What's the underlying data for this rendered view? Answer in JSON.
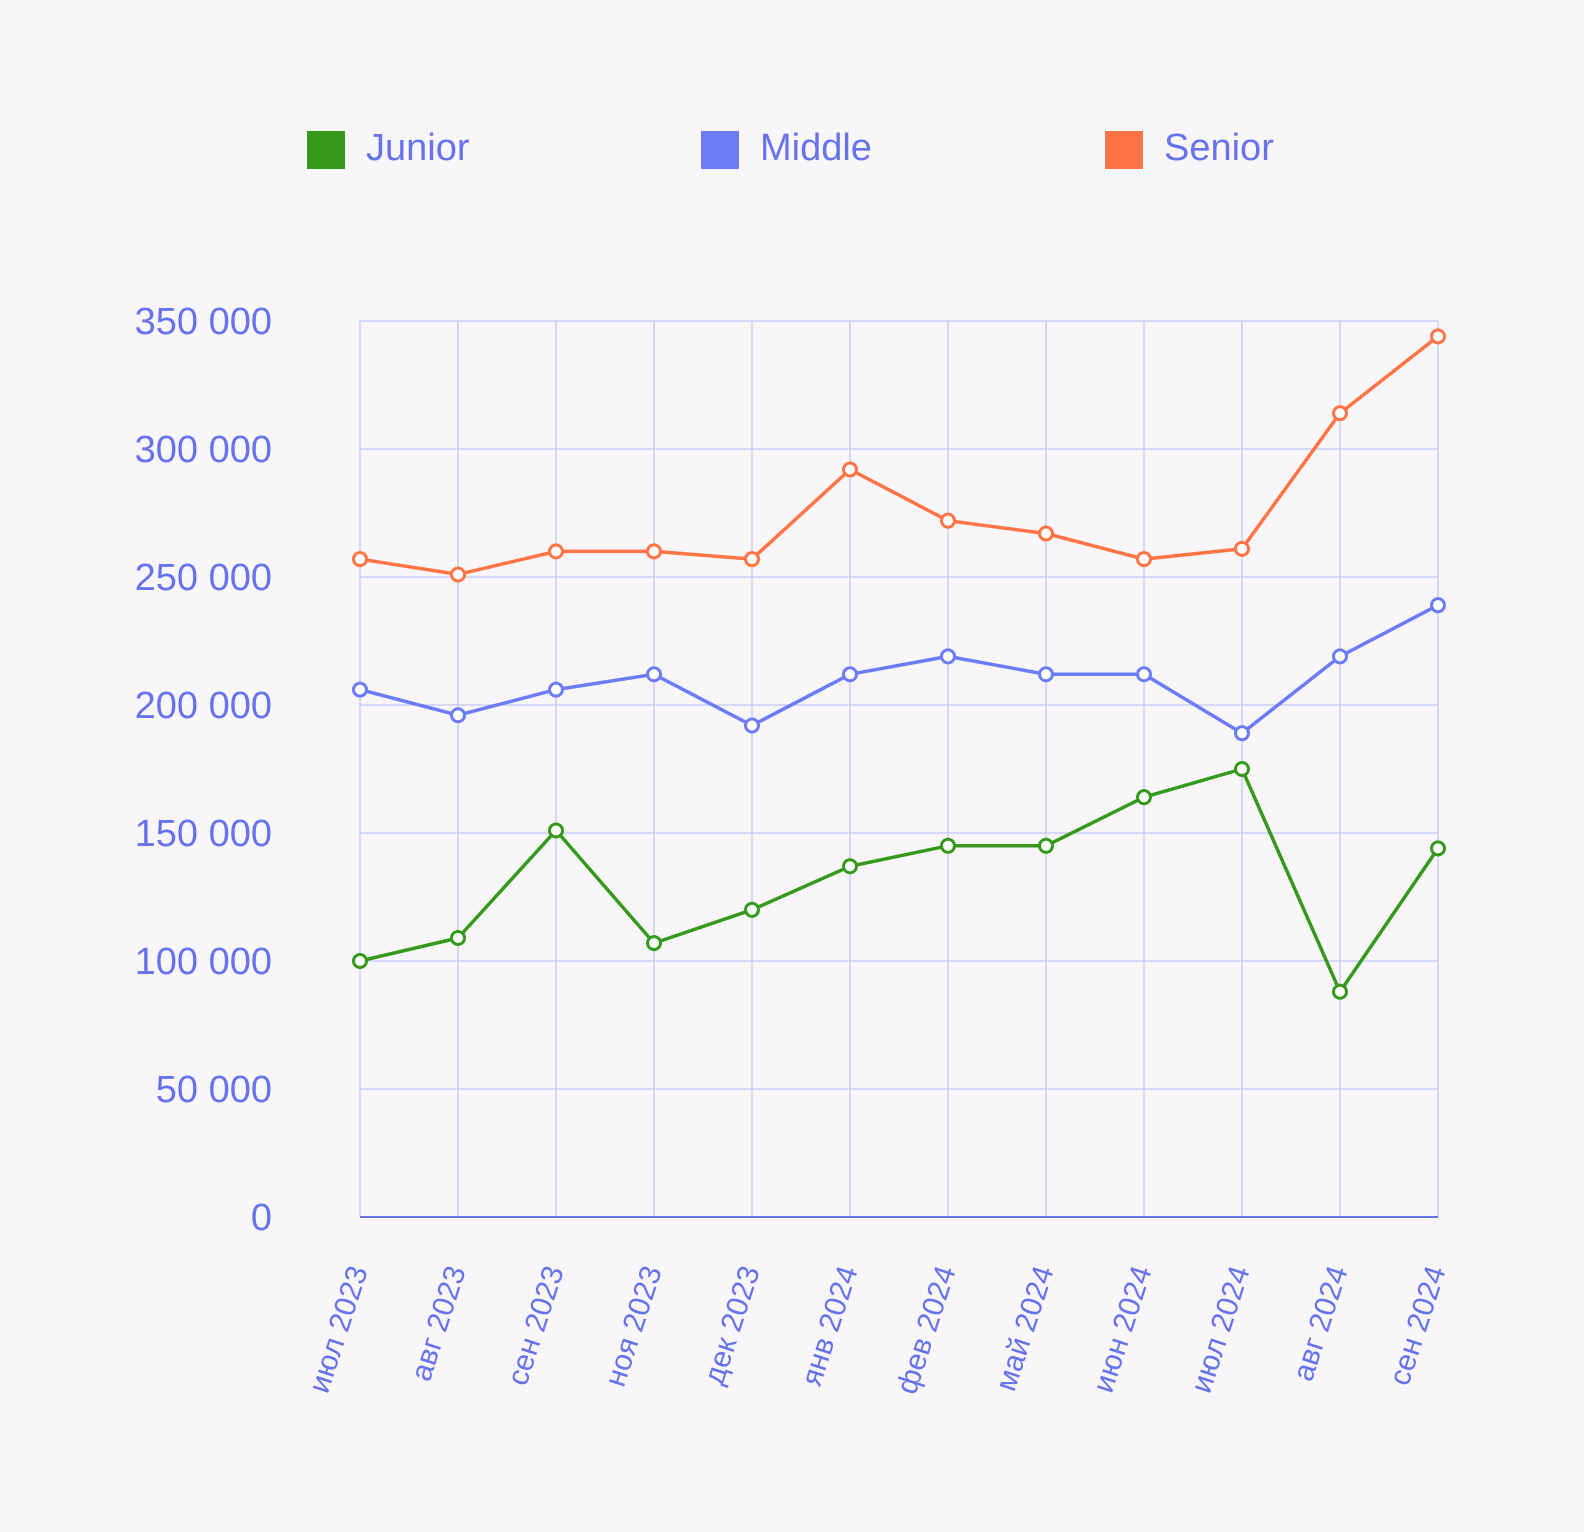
{
  "chart_data": {
    "type": "line",
    "categories": [
      "июл 2023",
      "авг 2023",
      "сен 2023",
      "ноя 2023",
      "дек 2023",
      "янв 2024",
      "фев 2024",
      "май 2024",
      "июн 2024",
      "июл 2024",
      "авг 2024",
      "сен 2024"
    ],
    "series": [
      {
        "name": "Junior",
        "color": "#359a1c",
        "values": [
          100000,
          109000,
          151000,
          107000,
          120000,
          137000,
          145000,
          145000,
          164000,
          175000,
          88000,
          144000
        ]
      },
      {
        "name": "Middle",
        "color": "#6b7cf6",
        "values": [
          206000,
          196000,
          206000,
          212000,
          192000,
          212000,
          219000,
          212000,
          212000,
          189000,
          219000,
          239000
        ]
      },
      {
        "name": "Senior",
        "color": "#ff7446",
        "values": [
          257000,
          251000,
          260000,
          260000,
          257000,
          292000,
          272000,
          267000,
          257000,
          261000,
          314000,
          344000
        ]
      }
    ],
    "yticks": [
      "0",
      "50 000",
      "100 000",
      "150 000",
      "200 000",
      "250 000",
      "300 000",
      "350 000"
    ],
    "ylim": [
      0,
      350000
    ],
    "grid": true,
    "legend_position": "top",
    "axis_text_color": "#6673ea",
    "grid_color": "#c9cdf5"
  }
}
